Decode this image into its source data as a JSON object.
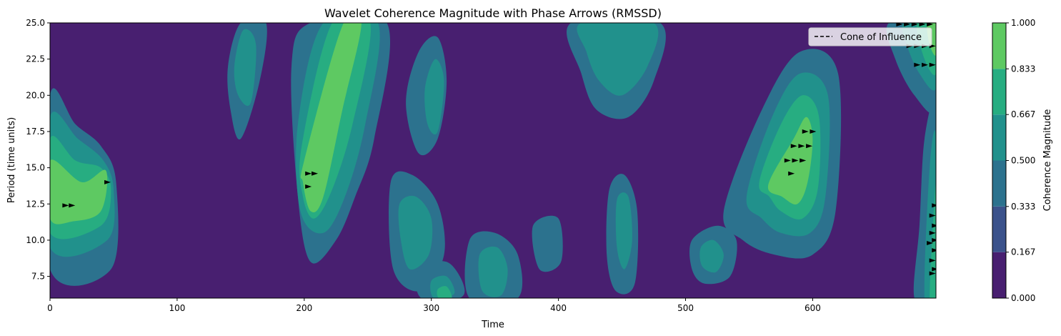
{
  "chart_data": {
    "type": "heatmap",
    "title": "Wavelet Coherence Magnitude with Phase Arrows (RMSSD)",
    "xlabel": "Time",
    "ylabel": "Period (time units)",
    "xlim": [
      0,
      697
    ],
    "ylim": [
      6,
      25
    ],
    "x_ticks": [
      0,
      100,
      200,
      300,
      400,
      500,
      600
    ],
    "y_ticks": [
      7.5,
      10.0,
      12.5,
      15.0,
      17.5,
      20.0,
      22.5,
      25.0
    ],
    "x_tick_labels": [
      "0",
      "100",
      "200",
      "300",
      "400",
      "500",
      "600"
    ],
    "y_tick_labels": [
      "7.5",
      "10.0",
      "12.5",
      "15.0",
      "17.5",
      "20.0",
      "22.5",
      "25.0"
    ],
    "legend": {
      "placement": "top-right",
      "entries": [
        {
          "label": "Cone of Influence",
          "style": "dashed",
          "color": "#000000"
        }
      ]
    },
    "colorbar": {
      "label": "Coherence Magnitude",
      "levels": [
        0.0,
        0.167,
        0.333,
        0.5,
        0.667,
        0.833,
        1.0
      ],
      "tick_labels": [
        "0.000",
        "0.167",
        "0.333",
        "0.500",
        "0.667",
        "0.833",
        "1.000"
      ],
      "colors": [
        "#481f70",
        "#3b528b",
        "#2c728e",
        "#21918c",
        "#27ad81",
        "#5ec962",
        "#c8e020"
      ]
    },
    "regions": [
      {
        "level": 0.333,
        "points": [
          [
            0,
            20
          ],
          [
            20,
            18
          ],
          [
            40,
            16.5
          ],
          [
            52,
            14
          ],
          [
            48,
            8
          ],
          [
            0,
            8
          ]
        ]
      },
      {
        "level": 0.5,
        "points": [
          [
            0,
            18.5
          ],
          [
            22,
            17
          ],
          [
            42,
            15.5
          ],
          [
            50,
            13.5
          ],
          [
            45,
            10
          ],
          [
            0,
            9.5
          ]
        ]
      },
      {
        "level": 0.667,
        "points": [
          [
            0,
            17
          ],
          [
            20,
            15.5
          ],
          [
            40,
            15
          ],
          [
            48,
            13.5
          ],
          [
            40,
            11
          ],
          [
            0,
            10.5
          ]
        ]
      },
      {
        "level": 0.833,
        "points": [
          [
            0,
            15.5
          ],
          [
            25,
            14
          ],
          [
            44,
            14.8
          ],
          [
            40,
            12
          ],
          [
            18,
            11.3
          ],
          [
            0,
            11.5
          ]
        ]
      },
      {
        "level": 0.333,
        "points": [
          [
            190,
            22
          ],
          [
            205,
            25
          ],
          [
            265,
            25
          ],
          [
            255,
            17
          ],
          [
            240,
            13
          ],
          [
            225,
            10
          ],
          [
            205,
            8.5
          ],
          [
            195,
            13
          ]
        ]
      },
      {
        "level": 0.5,
        "points": [
          [
            195,
            18
          ],
          [
            215,
            25
          ],
          [
            258,
            25
          ],
          [
            248,
            18
          ],
          [
            232,
            13
          ],
          [
            215,
            10.5
          ],
          [
            197,
            12
          ]
        ]
      },
      {
        "level": 0.667,
        "points": [
          [
            198,
            16.5
          ],
          [
            222,
            25
          ],
          [
            252,
            25
          ],
          [
            238,
            18
          ],
          [
            222,
            13.5
          ],
          [
            208,
            11.5
          ],
          [
            199,
            13
          ]
        ]
      },
      {
        "level": 0.833,
        "points": [
          [
            200,
            15.5
          ],
          [
            230,
            24.8
          ],
          [
            245,
            25
          ],
          [
            230,
            19
          ],
          [
            215,
            13
          ],
          [
            205,
            12
          ],
          [
            199,
            14
          ]
        ]
      },
      {
        "level": 0.333,
        "points": [
          [
            140,
            22
          ],
          [
            150,
            25
          ],
          [
            170,
            25
          ],
          [
            165,
            21
          ],
          [
            150,
            17
          ],
          [
            142,
            19
          ]
        ]
      },
      {
        "level": 0.5,
        "points": [
          [
            145,
            22
          ],
          [
            152,
            24.5
          ],
          [
            162,
            23.5
          ],
          [
            158,
            19.5
          ],
          [
            148,
            20
          ]
        ]
      },
      {
        "level": 0.333,
        "points": [
          [
            280,
            19.5
          ],
          [
            290,
            23
          ],
          [
            305,
            24
          ],
          [
            312,
            21
          ],
          [
            305,
            17
          ],
          [
            290,
            16
          ]
        ]
      },
      {
        "level": 0.5,
        "points": [
          [
            295,
            20.5
          ],
          [
            303,
            22.5
          ],
          [
            310,
            21
          ],
          [
            305,
            17.5
          ],
          [
            297,
            18
          ]
        ]
      },
      {
        "level": 0.333,
        "points": [
          [
            268,
            14
          ],
          [
            285,
            14.5
          ],
          [
            305,
            12.5
          ],
          [
            310,
            9
          ],
          [
            292,
            6.5
          ],
          [
            270,
            8
          ]
        ]
      },
      {
        "level": 0.5,
        "points": [
          [
            275,
            12.5
          ],
          [
            288,
            13
          ],
          [
            300,
            11.5
          ],
          [
            298,
            9
          ],
          [
            283,
            8
          ],
          [
            276,
            10
          ]
        ]
      },
      {
        "level": 0.333,
        "points": [
          [
            330,
            10
          ],
          [
            350,
            10.5
          ],
          [
            368,
            9
          ],
          [
            368,
            6
          ],
          [
            330,
            6
          ]
        ]
      },
      {
        "level": 0.5,
        "points": [
          [
            338,
            9
          ],
          [
            352,
            9.5
          ],
          [
            360,
            8
          ],
          [
            355,
            6.2
          ],
          [
            340,
            6.5
          ]
        ]
      },
      {
        "level": 0.333,
        "points": [
          [
            290,
            8
          ],
          [
            312,
            8.5
          ],
          [
            325,
            7
          ],
          [
            322,
            6
          ],
          [
            292,
            6
          ]
        ]
      },
      {
        "level": 0.5,
        "points": [
          [
            300,
            7.2
          ],
          [
            312,
            7.5
          ],
          [
            318,
            6.3
          ],
          [
            302,
            6
          ]
        ]
      },
      {
        "level": 0.667,
        "points": [
          [
            305,
            6.6
          ],
          [
            312,
            6.8
          ],
          [
            316,
            6
          ],
          [
            306,
            6
          ]
        ]
      },
      {
        "level": 0.333,
        "points": [
          [
            410,
            25
          ],
          [
            480,
            25
          ],
          [
            475,
            21
          ],
          [
            455,
            18.5
          ],
          [
            430,
            19
          ],
          [
            418,
            21.5
          ]
        ]
      },
      {
        "level": 0.5,
        "points": [
          [
            418,
            25
          ],
          [
            475,
            25
          ],
          [
            470,
            22
          ],
          [
            450,
            20
          ],
          [
            432,
            21
          ],
          [
            422,
            23
          ]
        ]
      },
      {
        "level": 0.333,
        "points": [
          [
            440,
            13.5
          ],
          [
            452,
            14.5
          ],
          [
            462,
            12
          ],
          [
            460,
            7
          ],
          [
            445,
            6.5
          ],
          [
            438,
            9
          ]
        ]
      },
      {
        "level": 0.5,
        "points": [
          [
            446,
            12.8
          ],
          [
            455,
            13
          ],
          [
            458,
            10
          ],
          [
            452,
            8
          ],
          [
            446,
            9.5
          ]
        ]
      },
      {
        "level": 0.333,
        "points": [
          [
            380,
            11
          ],
          [
            400,
            11.5
          ],
          [
            402,
            8.5
          ],
          [
            385,
            8
          ]
        ]
      },
      {
        "level": 0.333,
        "points": [
          [
            505,
            10
          ],
          [
            525,
            11
          ],
          [
            540,
            10
          ],
          [
            535,
            7.5
          ],
          [
            515,
            7
          ],
          [
            505,
            8
          ]
        ]
      },
      {
        "level": 0.5,
        "points": [
          [
            512,
            9.5
          ],
          [
            522,
            10
          ],
          [
            530,
            9
          ],
          [
            524,
            7.8
          ],
          [
            513,
            8.2
          ]
        ]
      },
      {
        "level": 0.333,
        "points": [
          [
            530,
            12
          ],
          [
            560,
            19
          ],
          [
            590,
            23
          ],
          [
            620,
            21.5
          ],
          [
            618,
            12
          ],
          [
            600,
            9
          ],
          [
            570,
            9
          ],
          [
            545,
            10
          ]
        ]
      },
      {
        "level": 0.5,
        "points": [
          [
            548,
            13
          ],
          [
            568,
            18.5
          ],
          [
            590,
            21.5
          ],
          [
            612,
            20
          ],
          [
            610,
            13
          ],
          [
            598,
            10.5
          ],
          [
            575,
            10.5
          ],
          [
            560,
            11.5
          ]
        ]
      },
      {
        "level": 0.667,
        "points": [
          [
            558,
            14
          ],
          [
            575,
            18
          ],
          [
            592,
            20
          ],
          [
            605,
            18.5
          ],
          [
            604,
            13.5
          ],
          [
            592,
            11.5
          ],
          [
            575,
            12
          ],
          [
            566,
            13
          ]
        ]
      },
      {
        "level": 0.833,
        "points": [
          [
            565,
            13.8
          ],
          [
            585,
            17
          ],
          [
            595,
            18.5
          ],
          [
            600,
            17
          ],
          [
            596,
            14
          ],
          [
            588,
            12.5
          ],
          [
            576,
            13
          ]
        ]
      },
      {
        "level": 0.333,
        "points": [
          [
            660,
            25
          ],
          [
            697,
            25
          ],
          [
            697,
            19
          ],
          [
            680,
            20
          ],
          [
            665,
            22.5
          ]
        ]
      },
      {
        "level": 0.5,
        "points": [
          [
            672,
            25
          ],
          [
            697,
            25
          ],
          [
            697,
            20.5
          ],
          [
            684,
            21.5
          ],
          [
            674,
            23.5
          ]
        ]
      },
      {
        "level": 0.667,
        "points": [
          [
            682,
            25
          ],
          [
            697,
            25
          ],
          [
            697,
            21.5
          ],
          [
            688,
            22.5
          ]
        ]
      },
      {
        "level": 0.833,
        "points": [
          [
            690,
            25
          ],
          [
            697,
            25
          ],
          [
            697,
            22.8
          ],
          [
            692,
            23.5
          ]
        ]
      },
      {
        "level": 0.333,
        "points": [
          [
            680,
            6
          ],
          [
            697,
            6
          ],
          [
            697,
            19
          ],
          [
            688,
            17
          ],
          [
            684,
            11
          ]
        ]
      },
      {
        "level": 0.5,
        "points": [
          [
            688,
            6
          ],
          [
            697,
            6
          ],
          [
            697,
            17
          ],
          [
            692,
            15
          ]
        ]
      },
      {
        "level": 0.667,
        "points": [
          [
            692,
            6
          ],
          [
            697,
            6
          ],
          [
            697,
            14
          ]
        ]
      }
    ],
    "arrows": [
      {
        "x": 12,
        "y": 12.4
      },
      {
        "x": 17,
        "y": 12.4
      },
      {
        "x": 45,
        "y": 14.0
      },
      {
        "x": 203,
        "y": 14.6
      },
      {
        "x": 208,
        "y": 14.6
      },
      {
        "x": 203,
        "y": 13.7
      },
      {
        "x": 594,
        "y": 17.5
      },
      {
        "x": 600,
        "y": 17.5
      },
      {
        "x": 585,
        "y": 16.5
      },
      {
        "x": 591,
        "y": 16.5
      },
      {
        "x": 597,
        "y": 16.5
      },
      {
        "x": 580,
        "y": 15.5
      },
      {
        "x": 586,
        "y": 15.5
      },
      {
        "x": 592,
        "y": 15.5
      },
      {
        "x": 583,
        "y": 14.6
      },
      {
        "x": 668,
        "y": 24.9
      },
      {
        "x": 674,
        "y": 24.9
      },
      {
        "x": 680,
        "y": 24.9
      },
      {
        "x": 686,
        "y": 24.9
      },
      {
        "x": 692,
        "y": 24.9
      },
      {
        "x": 676,
        "y": 23.4
      },
      {
        "x": 682,
        "y": 23.4
      },
      {
        "x": 688,
        "y": 23.4
      },
      {
        "x": 694,
        "y": 23.4
      },
      {
        "x": 682,
        "y": 22.1
      },
      {
        "x": 688,
        "y": 22.1
      },
      {
        "x": 694,
        "y": 22.1
      },
      {
        "x": 696,
        "y": 12.4
      },
      {
        "x": 694,
        "y": 11.7
      },
      {
        "x": 696,
        "y": 11.0
      },
      {
        "x": 694,
        "y": 10.5
      },
      {
        "x": 696,
        "y": 10.0
      },
      {
        "x": 692,
        "y": 9.8
      },
      {
        "x": 696,
        "y": 9.3
      },
      {
        "x": 694,
        "y": 8.6
      },
      {
        "x": 696,
        "y": 8.0
      },
      {
        "x": 694,
        "y": 7.7
      }
    ]
  }
}
